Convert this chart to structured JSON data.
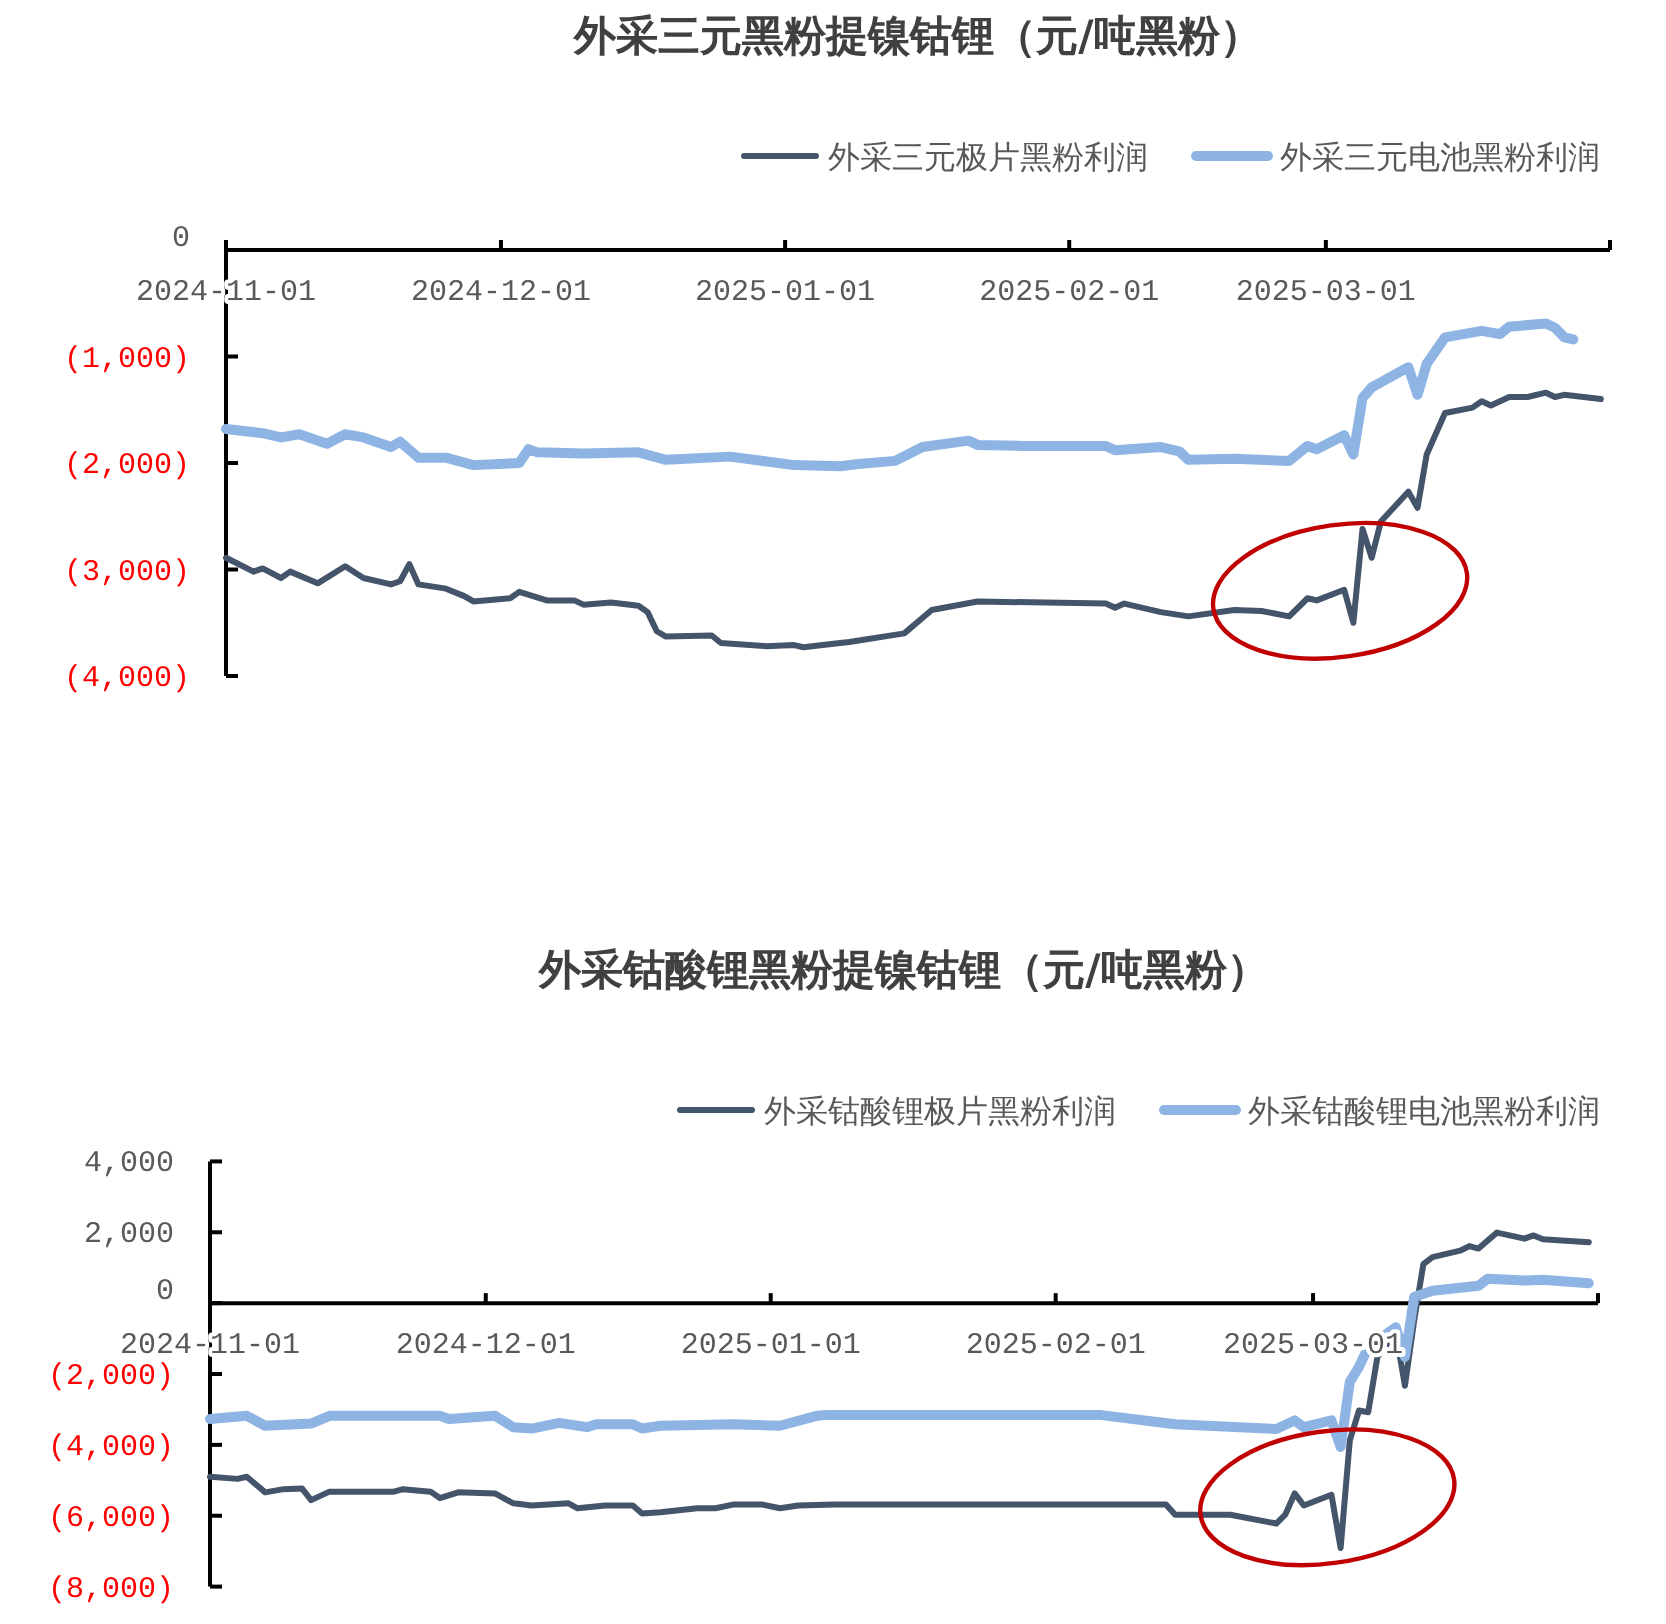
{
  "chart_data": [
    {
      "type": "line",
      "title": "外采三元黑粉提镍钴锂（元/吨黑粉）",
      "legend": "top right",
      "xlim": [
        "2024-11-01",
        "2025-04-01"
      ],
      "xticks": [
        "2024-11-01",
        "2024-12-01",
        "2025-01-01",
        "2025-02-01",
        "2025-03-01"
      ],
      "ylim": [
        -4000,
        0
      ],
      "yticks": [
        0,
        {
          "value": -1000,
          "label": "(1,000)"
        },
        {
          "value": -2000,
          "label": "(2,000)"
        },
        {
          "value": -3000,
          "label": "(3,000)"
        },
        {
          "value": -4000,
          "label": "(4,000)"
        }
      ],
      "series": [
        {
          "name": "外采三元极片黑粉利润",
          "color": "#44546a",
          "x": [
            "2024-11-01",
            "2024-11-04",
            "2024-11-05",
            "2024-11-07",
            "2024-11-08",
            "2024-11-11",
            "2024-11-14",
            "2024-11-16",
            "2024-11-19",
            "2024-11-20",
            "2024-11-21",
            "2024-11-22",
            "2024-11-25",
            "2024-11-27",
            "2024-11-28",
            "2024-12-02",
            "2024-12-03",
            "2024-12-06",
            "2024-12-09",
            "2024-12-10",
            "2024-12-13",
            "2024-12-16",
            "2024-12-17",
            "2024-12-18",
            "2024-12-19",
            "2024-12-24",
            "2024-12-25",
            "2024-12-30",
            "2025-01-02",
            "2025-01-03",
            "2025-01-07",
            "2025-01-08",
            "2025-01-14",
            "2025-01-17",
            "2025-01-22",
            "2025-02-05",
            "2025-02-06",
            "2025-02-07",
            "2025-02-11",
            "2025-02-14",
            "2025-02-19",
            "2025-02-22",
            "2025-02-25",
            "2025-02-27",
            "2025-02-28",
            "2025-03-03",
            "2025-03-04",
            "2025-03-05",
            "2025-03-06",
            "2025-03-07",
            "2025-03-10",
            "2025-03-11",
            "2025-03-12",
            "2025-03-14",
            "2025-03-17",
            "2025-03-18",
            "2025-03-19",
            "2025-03-21",
            "2025-03-23",
            "2025-03-25",
            "2025-03-26",
            "2025-03-27",
            "2025-03-31"
          ],
          "values": [
            -2890,
            -3020,
            -2990,
            -3080,
            -3020,
            -3130,
            -2970,
            -3080,
            -3140,
            -3110,
            -2950,
            -3140,
            -3180,
            -3250,
            -3300,
            -3270,
            -3210,
            -3290,
            -3290,
            -3330,
            -3310,
            -3340,
            -3400,
            -3580,
            -3630,
            -3620,
            -3690,
            -3720,
            -3710,
            -3730,
            -3690,
            -3680,
            -3600,
            -3380,
            -3300,
            -3320,
            -3360,
            -3320,
            -3400,
            -3440,
            -3380,
            -3390,
            -3440,
            -3270,
            -3290,
            -3190,
            -3500,
            -2620,
            -2890,
            -2550,
            -2270,
            -2420,
            -1920,
            -1530,
            -1480,
            -1420,
            -1460,
            -1380,
            -1380,
            -1340,
            -1380,
            -1360,
            -1400
          ]
        },
        {
          "name": "外采三元电池黑粉利润",
          "color": "#8eb4e3",
          "x": [
            "2024-11-01",
            "2024-11-05",
            "2024-11-07",
            "2024-11-09",
            "2024-11-12",
            "2024-11-14",
            "2024-11-16",
            "2024-11-19",
            "2024-11-20",
            "2024-11-22",
            "2024-11-25",
            "2024-11-28",
            "2024-12-03",
            "2024-12-04",
            "2024-12-05",
            "2024-12-10",
            "2024-12-16",
            "2024-12-19",
            "2024-12-26",
            "2025-01-02",
            "2025-01-07",
            "2025-01-09",
            "2025-01-13",
            "2025-01-16",
            "2025-01-21",
            "2025-01-22",
            "2025-01-27",
            "2025-02-05",
            "2025-02-06",
            "2025-02-11",
            "2025-02-13",
            "2025-02-14",
            "2025-02-19",
            "2025-02-25",
            "2025-02-27",
            "2025-02-28",
            "2025-03-03",
            "2025-03-04",
            "2025-03-05",
            "2025-03-06",
            "2025-03-10",
            "2025-03-11",
            "2025-03-12",
            "2025-03-14",
            "2025-03-18",
            "2025-03-20",
            "2025-03-21",
            "2025-03-25",
            "2025-03-26",
            "2025-03-27",
            "2025-03-28"
          ],
          "values": [
            -1680,
            -1720,
            -1760,
            -1730,
            -1820,
            -1730,
            -1760,
            -1850,
            -1800,
            -1950,
            -1950,
            -2020,
            -2000,
            -1870,
            -1900,
            -1910,
            -1900,
            -1970,
            -1940,
            -2020,
            -2030,
            -2010,
            -1980,
            -1850,
            -1790,
            -1830,
            -1840,
            -1840,
            -1880,
            -1850,
            -1890,
            -1970,
            -1960,
            -1980,
            -1840,
            -1870,
            -1740,
            -1920,
            -1390,
            -1290,
            -1100,
            -1360,
            -1070,
            -820,
            -760,
            -790,
            -720,
            -690,
            -730,
            -820,
            -840
          ]
        }
      ]
    },
    {
      "type": "line",
      "title": "外采钴酸锂黑粉提镍钴锂（元/吨黑粉）",
      "legend": "top right",
      "xlim": [
        "2024-11-01",
        "2025-04-01"
      ],
      "xticks": [
        "2024-11-01",
        "2024-12-01",
        "2025-01-01",
        "2025-02-01",
        "2025-03-01"
      ],
      "ylim": [
        -8000,
        4000
      ],
      "yticks": [
        {
          "value": 4000,
          "label": "4,000"
        },
        {
          "value": 2000,
          "label": "2,000"
        },
        0,
        {
          "value": -2000,
          "label": "(2,000)"
        },
        {
          "value": -4000,
          "label": "(4,000)"
        },
        {
          "value": -6000,
          "label": "(6,000)"
        },
        {
          "value": -8000,
          "label": "(8,000)"
        }
      ],
      "series": [
        {
          "name": "外采钴酸锂极片黑粉利润",
          "color": "#44546a",
          "x": [
            "2024-11-01",
            "2024-11-04",
            "2024-11-05",
            "2024-11-07",
            "2024-11-09",
            "2024-11-11",
            "2024-11-12",
            "2024-11-14",
            "2024-11-21",
            "2024-11-22",
            "2024-11-25",
            "2024-11-26",
            "2024-11-28",
            "2024-12-02",
            "2024-12-04",
            "2024-12-06",
            "2024-12-10",
            "2024-12-11",
            "2024-12-14",
            "2024-12-17",
            "2024-12-18",
            "2024-12-20",
            "2024-12-24",
            "2024-12-26",
            "2024-12-28",
            "2024-12-31",
            "2025-01-02",
            "2025-01-04",
            "2025-01-08",
            "2025-01-14",
            "2025-02-13",
            "2025-02-14",
            "2025-02-20",
            "2025-02-25",
            "2025-02-26",
            "2025-02-27",
            "2025-02-28",
            "2025-03-03",
            "2025-03-04",
            "2025-03-05",
            "2025-03-06",
            "2025-03-07",
            "2025-03-08",
            "2025-03-10",
            "2025-03-11",
            "2025-03-12",
            "2025-03-13",
            "2025-03-14",
            "2025-03-17",
            "2025-03-18",
            "2025-03-19",
            "2025-03-21",
            "2025-03-24",
            "2025-03-25",
            "2025-03-26",
            "2025-03-31"
          ],
          "values": [
            -4900,
            -4960,
            -4900,
            -5340,
            -5250,
            -5230,
            -5560,
            -5320,
            -5320,
            -5250,
            -5320,
            -5500,
            -5340,
            -5370,
            -5650,
            -5710,
            -5650,
            -5790,
            -5710,
            -5710,
            -5940,
            -5900,
            -5790,
            -5790,
            -5680,
            -5680,
            -5790,
            -5710,
            -5680,
            -5680,
            -5680,
            -5970,
            -5970,
            -6220,
            -5960,
            -5370,
            -5710,
            -5410,
            -6910,
            -3870,
            -3030,
            -3080,
            -1520,
            -830,
            -2330,
            -490,
            1100,
            1300,
            1480,
            1610,
            1540,
            1990,
            1820,
            1910,
            1800,
            1720
          ]
        },
        {
          "name": "外采钴酸锂电池黑粉利润",
          "color": "#8eb4e3",
          "x": [
            "2024-11-01",
            "2024-11-05",
            "2024-11-07",
            "2024-11-12",
            "2024-11-14",
            "2024-11-26",
            "2024-11-27",
            "2024-12-02",
            "2024-12-04",
            "2024-12-06",
            "2024-12-09",
            "2024-12-12",
            "2024-12-13",
            "2024-12-17",
            "2024-12-18",
            "2024-12-20",
            "2024-12-28",
            "2025-01-02",
            "2025-01-06",
            "2025-01-07",
            "2025-02-06",
            "2025-02-14",
            "2025-02-25",
            "2025-02-27",
            "2025-02-28",
            "2025-03-03",
            "2025-03-04",
            "2025-03-05",
            "2025-03-06",
            "2025-03-07",
            "2025-03-10",
            "2025-03-11",
            "2025-03-12",
            "2025-03-14",
            "2025-03-19",
            "2025-03-20",
            "2025-03-24",
            "2025-03-26",
            "2025-03-31"
          ],
          "values": [
            -3270,
            -3180,
            -3460,
            -3400,
            -3180,
            -3180,
            -3270,
            -3180,
            -3500,
            -3540,
            -3380,
            -3500,
            -3420,
            -3420,
            -3540,
            -3460,
            -3420,
            -3460,
            -3180,
            -3160,
            -3160,
            -3420,
            -3550,
            -3310,
            -3500,
            -3310,
            -4060,
            -2220,
            -1800,
            -1240,
            -680,
            -1520,
            170,
            350,
            490,
            690,
            640,
            660,
            560
          ]
        }
      ]
    }
  ]
}
